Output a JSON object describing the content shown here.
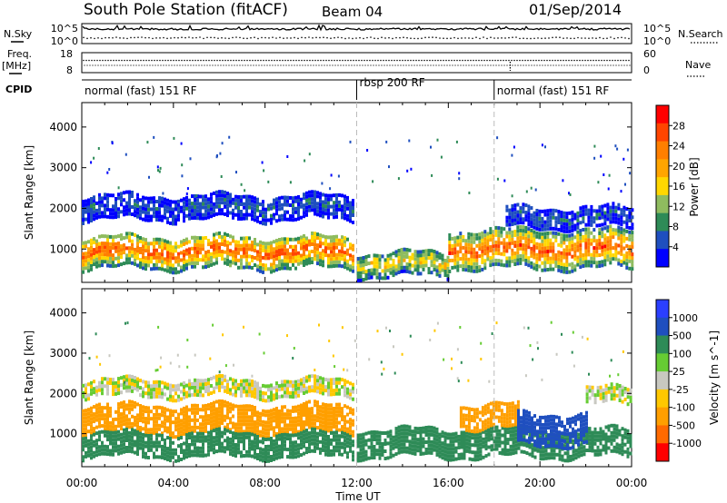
{
  "header": {
    "station": "South Pole Station (fitACF)",
    "beam": "Beam 04",
    "date": "01/Sep/2014"
  },
  "panel_labels": {
    "nsky": "N.Sky",
    "freq": "Freq.",
    "mhz": "[MHz]",
    "cpid": "CPID",
    "nsearch": "N.Search",
    "nave": "Nave"
  },
  "noise_axis": {
    "left_ticks": [
      "10^5",
      "10^0"
    ],
    "right_ticks": [
      "10^5",
      "10^0"
    ]
  },
  "freq_axis": {
    "left_ticks": [
      "18",
      "8"
    ],
    "right_ticks": [
      "60",
      "0"
    ]
  },
  "cpid_segments": [
    {
      "label": "normal (fast) 151 RF",
      "start_hour": 0
    },
    {
      "label": "rbsp 200 RF",
      "start_hour": 12
    },
    {
      "label": "normal (fast) 151 RF",
      "start_hour": 18
    }
  ],
  "chart_data": [
    {
      "type": "heatmap",
      "title": "Power",
      "xlabel": "Time UT",
      "ylabel": "Slant Range [km]",
      "x_ticks": [
        "00:00",
        "04:00",
        "08:00",
        "12:00",
        "16:00",
        "20:00",
        "00:00"
      ],
      "x_range_hours": [
        0,
        24
      ],
      "y_ticks": [
        1000,
        2000,
        3000,
        4000
      ],
      "y_range_km": [
        180,
        4600
      ],
      "colorbar_label": "Power [dB]",
      "colorbar_ticks": [
        "28",
        "24",
        "20",
        "16",
        "12",
        "8",
        "4"
      ],
      "colorbar_range": [
        0,
        32
      ],
      "colors": [
        "#0000ff",
        "#1f4fbf",
        "#2e8b57",
        "#8fbc5f",
        "#ffd700",
        "#ffa500",
        "#ff7f00",
        "#ff4500",
        "#ff0000"
      ],
      "approx_echo_bands": [
        {
          "start_hour": 0.0,
          "end_hour": 11.8,
          "range_min_km": 500,
          "range_max_km": 1300,
          "power_db": 26
        },
        {
          "start_hour": 0.0,
          "end_hour": 11.8,
          "range_min_km": 1700,
          "range_max_km": 2300,
          "power_db": 6
        },
        {
          "start_hour": 12.0,
          "end_hour": 16.0,
          "range_min_km": 300,
          "range_max_km": 900,
          "power_db": 18
        },
        {
          "start_hour": 16.0,
          "end_hour": 24.0,
          "range_min_km": 500,
          "range_max_km": 1400,
          "power_db": 26
        },
        {
          "start_hour": 18.5,
          "end_hour": 24.0,
          "range_min_km": 1500,
          "range_max_km": 2000,
          "power_db": 6
        }
      ]
    },
    {
      "type": "heatmap",
      "title": "Velocity",
      "xlabel": "Time UT",
      "ylabel": "Slant Range [km]",
      "x_ticks": [
        "00:00",
        "04:00",
        "08:00",
        "12:00",
        "16:00",
        "20:00",
        "00:00"
      ],
      "x_range_hours": [
        0,
        24
      ],
      "y_ticks": [
        1000,
        2000,
        3000,
        4000
      ],
      "y_range_km": [
        180,
        4600
      ],
      "colorbar_label": "Velocity [m s^-1]",
      "colorbar_ticks": [
        "1000",
        "500",
        "100",
        "25",
        "-25",
        "-100",
        "-500",
        "-1000"
      ],
      "colors": [
        "#ff0000",
        "#ff6a00",
        "#ff9f00",
        "#ffc800",
        "#c8c8c0",
        "#66cc33",
        "#2e8b57",
        "#1f4fbf",
        "#2b3fff"
      ],
      "approx_echo_bands": [
        {
          "start_hour": 0.0,
          "end_hour": 11.8,
          "range_min_km": 1000,
          "range_max_km": 1700,
          "velocity_ms": -300
        },
        {
          "start_hour": 0.0,
          "end_hour": 11.8,
          "range_min_km": 400,
          "range_max_km": 1000,
          "velocity_ms": 200
        },
        {
          "start_hour": 0.0,
          "end_hour": 11.8,
          "range_min_km": 1900,
          "range_max_km": 2300,
          "velocity_ms": 0
        },
        {
          "start_hour": 12.0,
          "end_hour": 24.0,
          "range_min_km": 400,
          "range_max_km": 1100,
          "velocity_ms": 200
        },
        {
          "start_hour": 16.5,
          "end_hour": 19.0,
          "range_min_km": 1100,
          "range_max_km": 1700,
          "velocity_ms": -300
        },
        {
          "start_hour": 19.0,
          "end_hour": 22.0,
          "range_min_km": 700,
          "range_max_km": 1500,
          "velocity_ms": 700
        },
        {
          "start_hour": 22.0,
          "end_hour": 24.0,
          "range_min_km": 1700,
          "range_max_km": 2100,
          "velocity_ms": 0
        }
      ]
    }
  ]
}
